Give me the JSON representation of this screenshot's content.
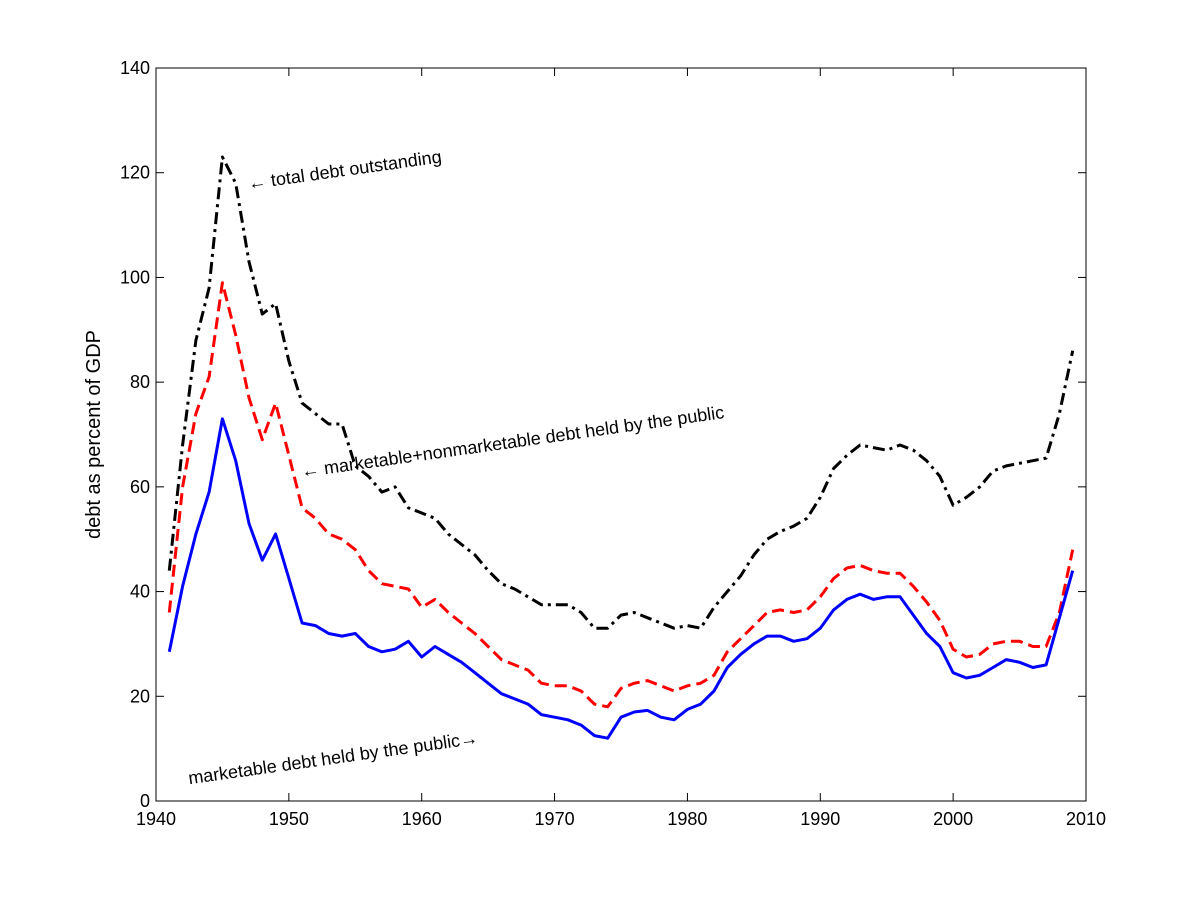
{
  "chart_data": {
    "type": "line",
    "title": "",
    "xlabel": "",
    "ylabel": "debt as percent of GDP",
    "xlim": [
      1940,
      2010
    ],
    "ylim": [
      0,
      140
    ],
    "xticks": [
      1940,
      1950,
      1960,
      1970,
      1980,
      1990,
      2000,
      2010
    ],
    "yticks": [
      0,
      20,
      40,
      60,
      80,
      100,
      120,
      140
    ],
    "grid": false,
    "legend": "none",
    "x": [
      1941,
      1942,
      1943,
      1944,
      1945,
      1946,
      1947,
      1948,
      1949,
      1950,
      1951,
      1952,
      1953,
      1954,
      1955,
      1956,
      1957,
      1958,
      1959,
      1960,
      1961,
      1962,
      1963,
      1964,
      1965,
      1966,
      1967,
      1968,
      1969,
      1970,
      1971,
      1972,
      1973,
      1974,
      1975,
      1976,
      1977,
      1978,
      1979,
      1980,
      1981,
      1982,
      1983,
      1984,
      1985,
      1986,
      1987,
      1988,
      1989,
      1990,
      1991,
      1992,
      1993,
      1994,
      1995,
      1996,
      1997,
      1998,
      1999,
      2000,
      2001,
      2002,
      2003,
      2004,
      2005,
      2006,
      2007,
      2008,
      2009
    ],
    "series": [
      {
        "key": "total",
        "color": "#000000",
        "style": "dash-dot",
        "values": [
          44.0,
          68,
          88,
          98,
          123,
          118,
          103,
          93,
          95,
          84,
          76,
          74,
          72,
          72,
          64,
          62,
          59,
          60,
          56,
          55,
          54,
          51,
          49,
          47,
          44,
          41.5,
          40.5,
          39,
          37.5,
          37.5,
          37.5,
          36,
          33,
          33,
          35.5,
          36,
          35,
          34,
          33,
          33.5,
          33,
          37,
          40,
          43,
          47,
          50,
          51.5,
          52.5,
          54,
          58,
          63.5,
          66,
          68,
          67.5,
          67,
          68,
          67,
          65,
          62,
          56.5,
          58,
          60,
          63,
          64,
          64.5,
          65,
          65.5,
          74,
          86
        ]
      },
      {
        "key": "marketable_nonmarketable",
        "color": "#ff0000",
        "style": "dashed",
        "values": [
          36,
          60,
          74,
          81,
          99,
          89,
          77,
          69,
          76,
          66,
          56,
          54,
          51,
          50,
          48,
          44,
          41.5,
          41,
          40.5,
          37,
          38.5,
          36,
          34,
          32,
          29.5,
          27,
          26,
          25,
          22.5,
          22,
          22,
          21,
          18.5,
          18,
          21.5,
          22.5,
          23,
          22,
          21,
          22,
          22.5,
          24,
          28.5,
          31,
          33.5,
          36,
          36.5,
          36,
          36.5,
          39,
          42.5,
          44.5,
          45,
          44,
          43.5,
          43.5,
          41,
          38,
          34.5,
          29,
          27.5,
          28,
          30,
          30.5,
          30.5,
          29.5,
          29.5,
          36,
          48
        ]
      },
      {
        "key": "marketable",
        "color": "#0000ff",
        "style": "solid",
        "values": [
          28.5,
          41,
          51,
          59,
          73,
          65,
          53,
          46,
          51,
          42.5,
          34,
          33.5,
          32,
          31.5,
          32,
          29.5,
          28.5,
          29,
          30.5,
          27.5,
          29.5,
          28,
          26.5,
          24.5,
          22.5,
          20.5,
          19.5,
          18.5,
          16.5,
          16,
          15.5,
          14.5,
          12.5,
          12,
          16,
          17,
          17.3,
          16,
          15.5,
          17.5,
          18.5,
          21,
          25.5,
          28,
          30,
          31.5,
          31.5,
          30.5,
          31,
          33,
          36.5,
          38.5,
          39.5,
          38.5,
          39,
          39,
          35.5,
          32,
          29.5,
          24.5,
          23.5,
          24,
          25.5,
          27,
          26.5,
          25.5,
          26,
          35,
          44
        ]
      }
    ],
    "annotations": [
      {
        "text": "← total debt outstanding",
        "x": 1947.0,
        "y": 116.8,
        "angle": -8
      },
      {
        "text": "← marketable+nonmarketable debt held by the public",
        "x": 1951.0,
        "y": 61.8,
        "angle": -8
      },
      {
        "text": "marketable debt held by the public→",
        "x": 1942.5,
        "y": 3.2,
        "angle": -8
      }
    ]
  }
}
